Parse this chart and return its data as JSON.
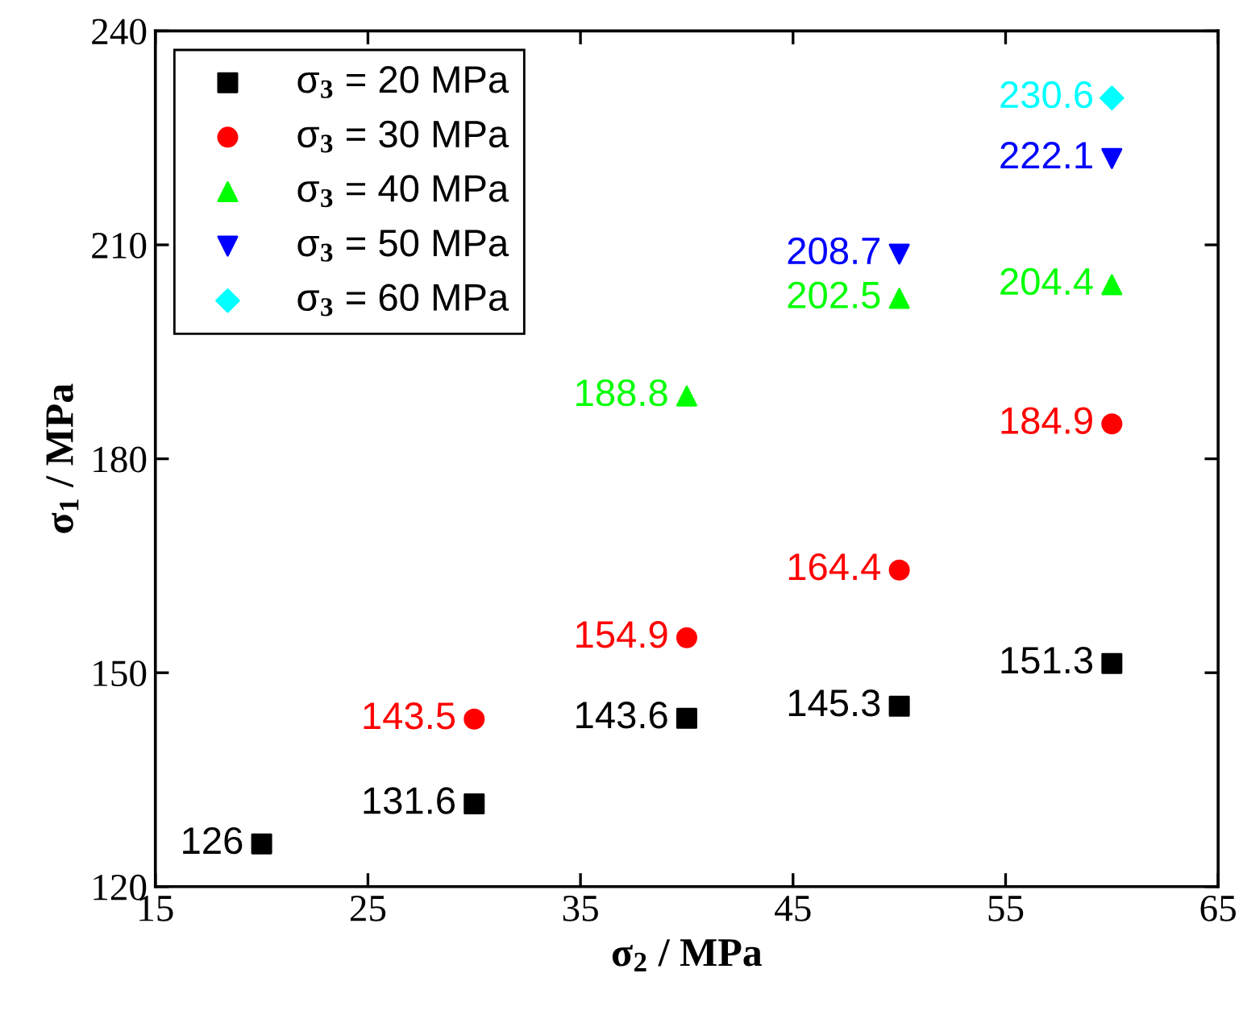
{
  "chart_data": {
    "type": "scatter",
    "xlabel": "σ$_{2}$ / MPa",
    "ylabel": "σ$_{1}$ / MPa",
    "xlim": [
      15,
      65
    ],
    "xticks": [
      15,
      25,
      35,
      45,
      55,
      65
    ],
    "ylim": [
      120,
      240
    ],
    "yticks": [
      120,
      150,
      180,
      210,
      240
    ],
    "grid": false,
    "legend": "top left",
    "data_labels": true,
    "series": [
      {
        "name": "σ$_{3}$ = 20 MPa",
        "color": "#000000",
        "marker": "square",
        "x": [
          20,
          30,
          40,
          50,
          60
        ],
        "values": [
          126,
          131.6,
          143.6,
          145.3,
          151.3
        ]
      },
      {
        "name": "σ$_{3}$ = 30 MPa",
        "color": "#ff0000",
        "marker": "circle",
        "x": [
          30,
          40,
          50,
          60
        ],
        "values": [
          143.5,
          154.9,
          164.4,
          184.9
        ]
      },
      {
        "name": "σ$_{3}$ = 40 MPa",
        "color": "#00ff00",
        "marker": "triangle",
        "x": [
          40,
          50,
          60
        ],
        "values": [
          188.8,
          202.5,
          204.4
        ]
      },
      {
        "name": "σ$_{3}$ = 50 MPa",
        "color": "#0000ff",
        "marker": "triangle_down",
        "x": [
          50,
          60
        ],
        "values": [
          208.7,
          222.1
        ]
      },
      {
        "name": "σ$_{3}$ = 60 MPa",
        "color": "#00ffff",
        "marker": "diamond",
        "x": [
          60
        ],
        "values": [
          230.6
        ]
      }
    ]
  }
}
